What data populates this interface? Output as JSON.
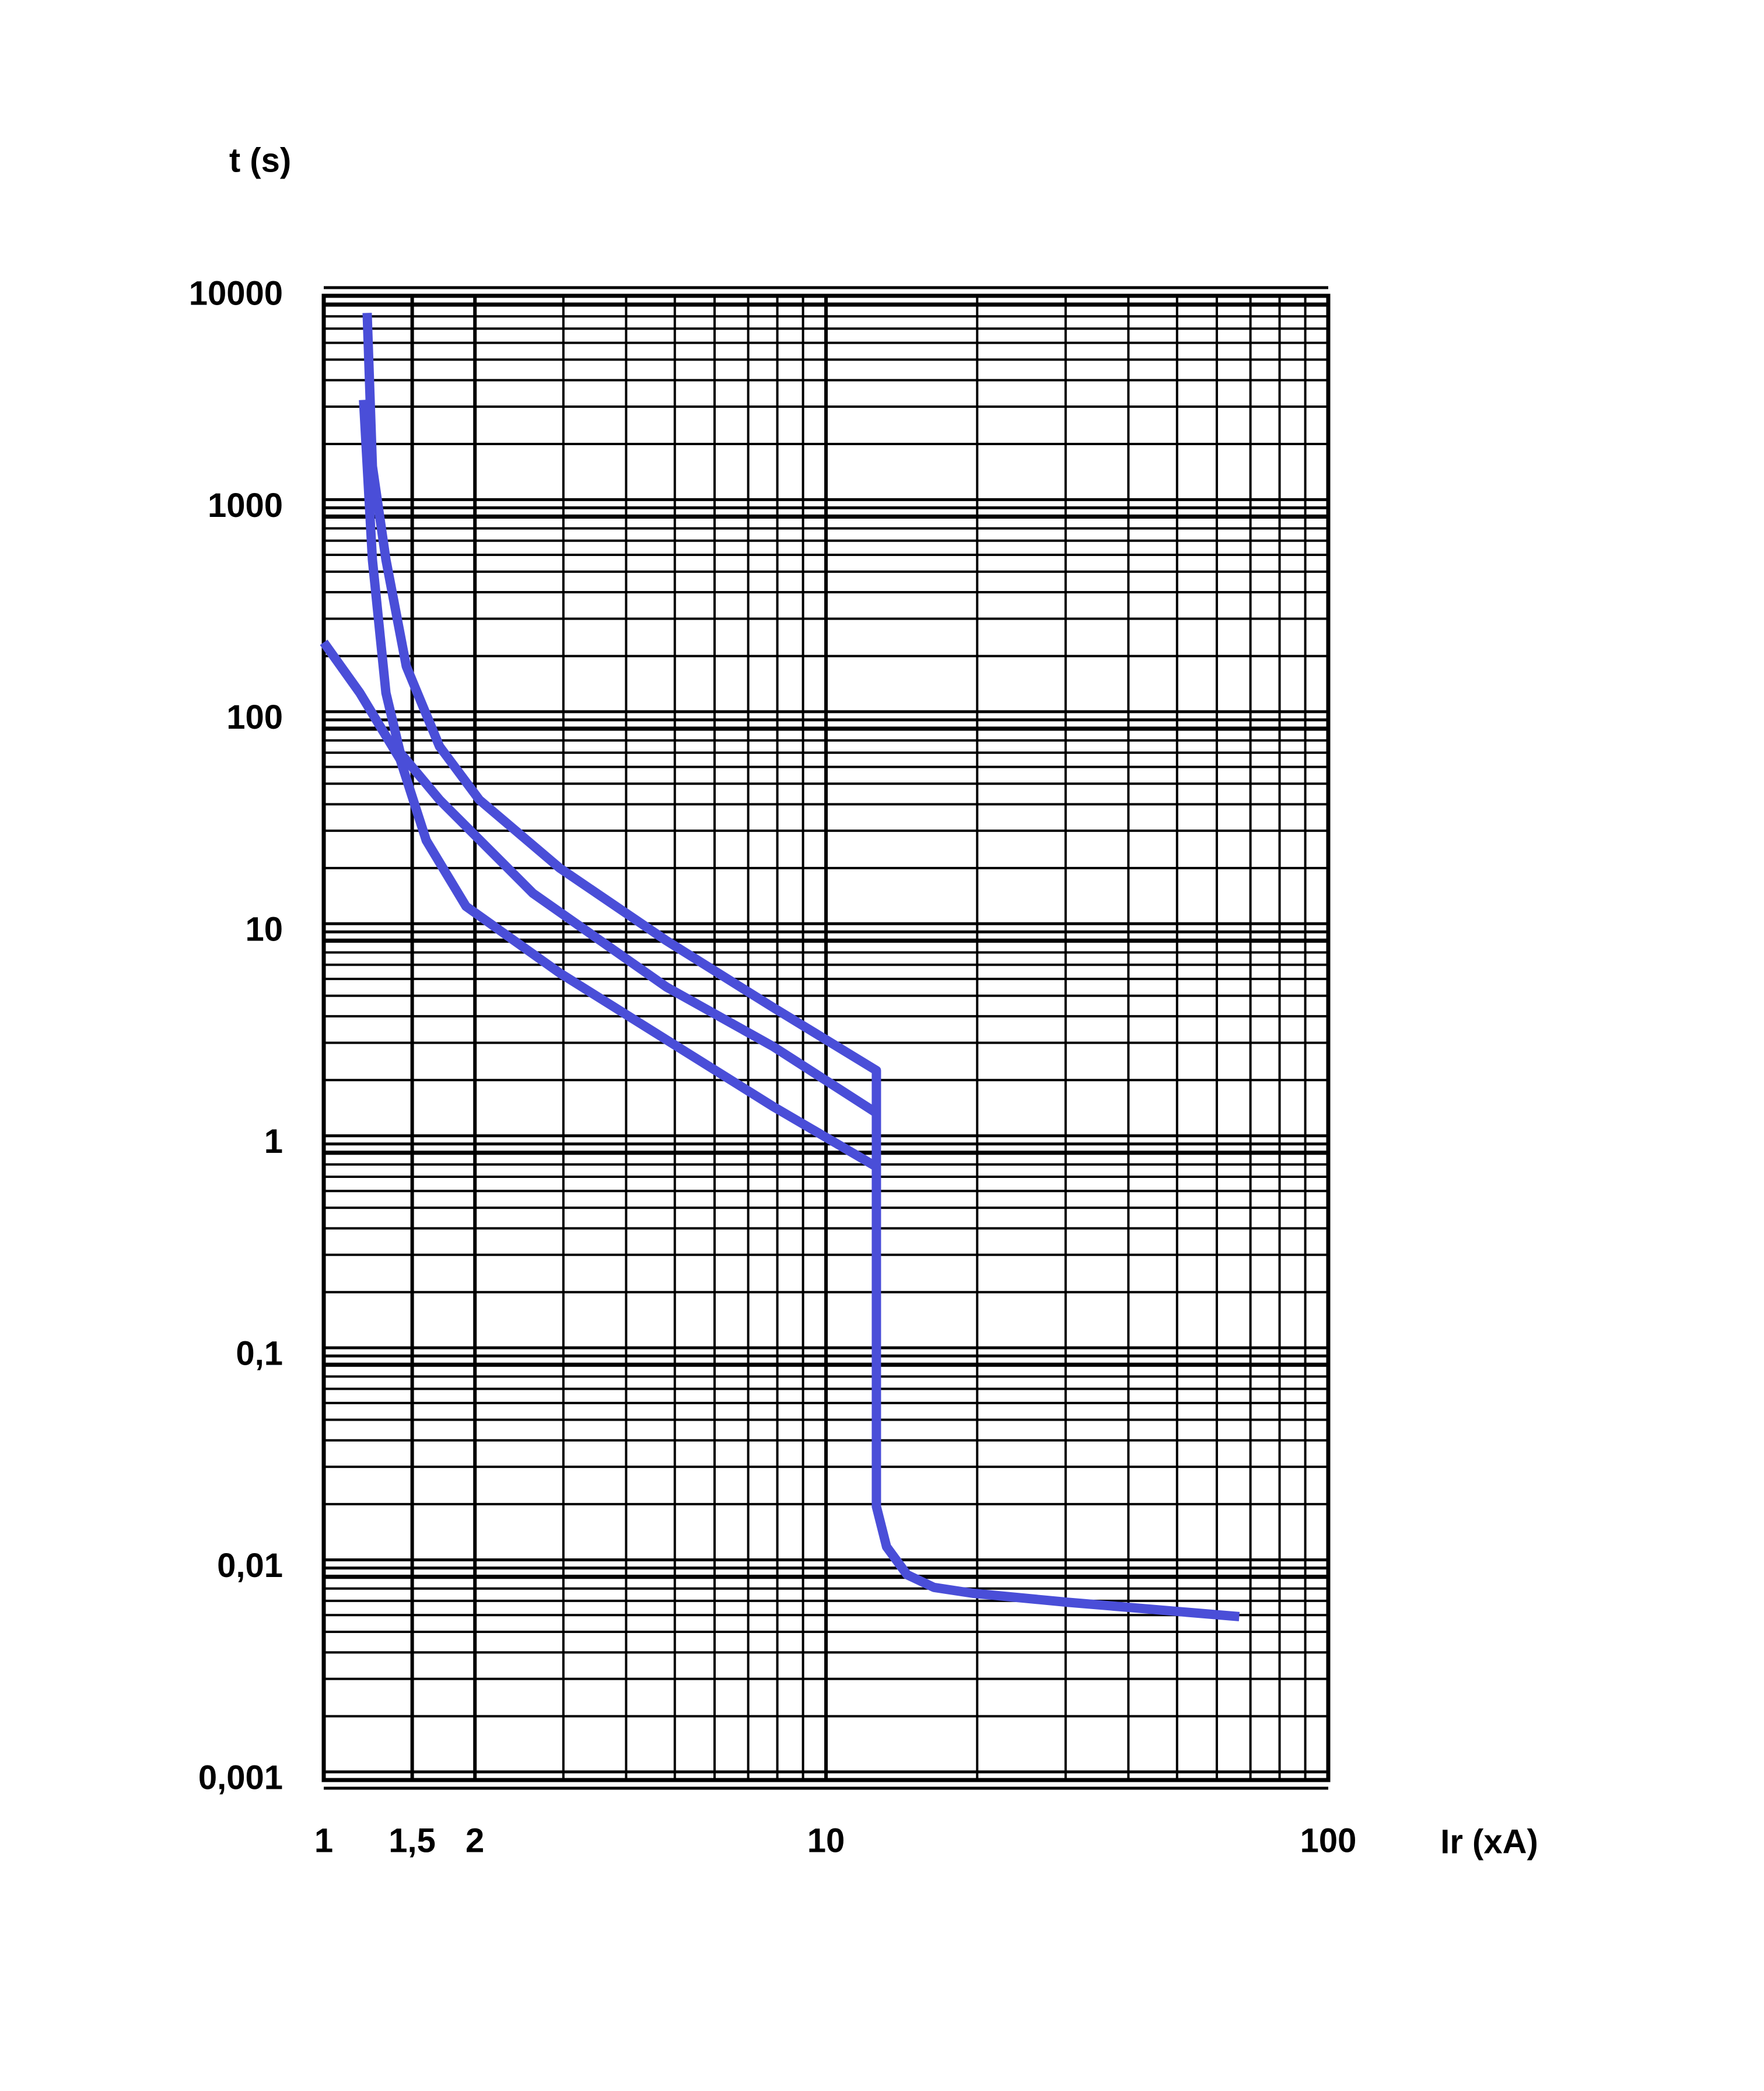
{
  "chart_data": {
    "type": "line",
    "ylabel": "t (s)",
    "xlabel": "Ir (xA)",
    "xlog": true,
    "ylog": true,
    "grid": true,
    "minor_grid": true,
    "xlim": [
      1,
      100
    ],
    "ylim": [
      0.001,
      10000
    ],
    "xticks": [
      1,
      {
        "value": 1.5,
        "label": "1,5"
      },
      2,
      10,
      100
    ],
    "yticks": [
      {
        "value": 0.001,
        "label": "0,001"
      },
      {
        "value": 0.01,
        "label": "0,01"
      },
      {
        "value": 0.1,
        "label": "0,1"
      },
      1,
      10,
      100,
      1000,
      10000
    ],
    "series": [
      {
        "color": "#4a4ed8",
        "x": [
          1.22,
          1.25,
          1.33,
          1.46,
          1.7,
          2.04,
          2.95,
          4.81,
          7.85,
          12.6,
          12.6,
          13.2,
          14.5,
          16.4,
          19.6,
          30.1,
          66.5
        ],
        "values": [
          8300,
          1570,
          570,
          179,
          75,
          42,
          20,
          9.1,
          4.4,
          2.22,
          0.0195,
          0.0126,
          0.0093,
          0.0081,
          0.0076,
          0.0069,
          0.0059
        ]
      },
      {
        "color": "#4a4ed8",
        "x": [
          1.2,
          1.25,
          1.33,
          1.42,
          1.7,
          2.61,
          4.81,
          7.85,
          12.6
        ],
        "values": [
          3230,
          570,
          134,
          70,
          42,
          15.2,
          5.5,
          2.88,
          1.4
        ]
      },
      {
        "color": "#4a4ed8",
        "x": [
          1,
          1.18,
          1.42,
          1.6,
          1.92,
          2.95,
          4.81,
          7.85,
          12.6
        ],
        "values": [
          232,
          134,
          65,
          27,
          13.2,
          6.4,
          3.1,
          1.5,
          0.78
        ]
      }
    ]
  }
}
